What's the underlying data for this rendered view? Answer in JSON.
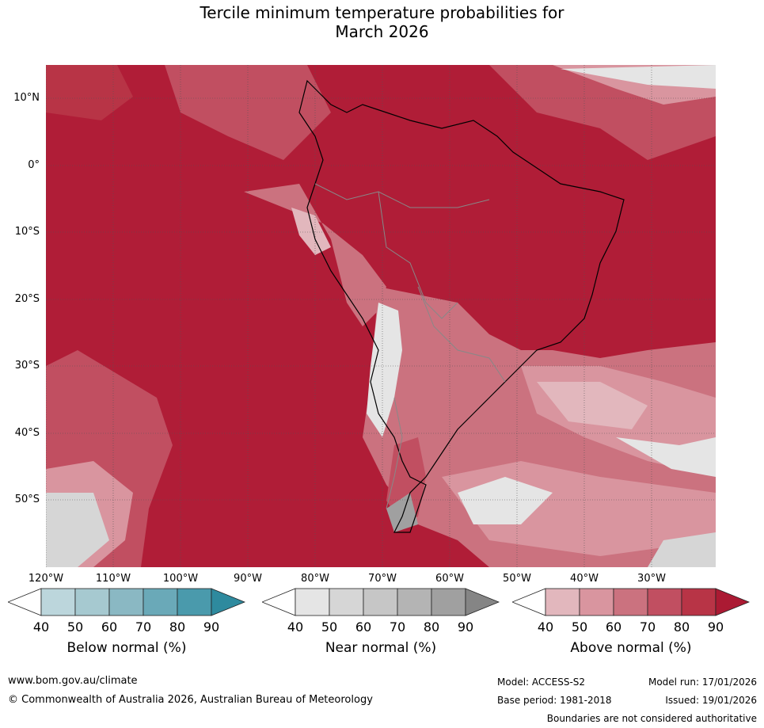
{
  "title_line1": "Tercile minimum temperature probabilities for",
  "title_line2": "March 2026",
  "lat_labels": [
    "10°N",
    "0°",
    "10°S",
    "20°S",
    "30°S",
    "40°S",
    "50°S"
  ],
  "lon_labels": [
    "120°W",
    "110°W",
    "100°W",
    "90°W",
    "80°W",
    "70°W",
    "60°W",
    "50°W",
    "40°W",
    "30°W"
  ],
  "legends": {
    "below": {
      "title": "Below normal (%)",
      "ticks": [
        "40",
        "50",
        "60",
        "70",
        "80",
        "90"
      ],
      "colors": [
        "#ffffff",
        "#bcd6dc",
        "#a6c9d0",
        "#8ab8c3",
        "#6aa9b8",
        "#4a9aac",
        "#2e8a9e"
      ]
    },
    "near": {
      "title": "Near normal (%)",
      "ticks": [
        "40",
        "50",
        "60",
        "70",
        "80",
        "90"
      ],
      "colors": [
        "#ffffff",
        "#e5e5e5",
        "#d6d6d6",
        "#c6c6c6",
        "#b4b4b4",
        "#a0a0a0",
        "#858585"
      ]
    },
    "above": {
      "title": "Above normal (%)",
      "ticks": [
        "40",
        "50",
        "60",
        "70",
        "80",
        "90"
      ],
      "colors": [
        "#ffffff",
        "#e2b7bd",
        "#d9959f",
        "#cb727f",
        "#c14f61",
        "#b83446",
        "#ab1a33"
      ]
    }
  },
  "footer": {
    "url": "www.bom.gov.au/climate",
    "copyright": "© Commonwealth of Australia 2026, Australian Bureau of Meteorology",
    "model": "Model: ACCESS-S2",
    "model_run": "Model run: 17/01/2026",
    "base_period": "Base period: 1981-2018",
    "issued": "Issued: 19/01/2026",
    "disclaimer": "Boundaries are not considered authoritative"
  }
}
